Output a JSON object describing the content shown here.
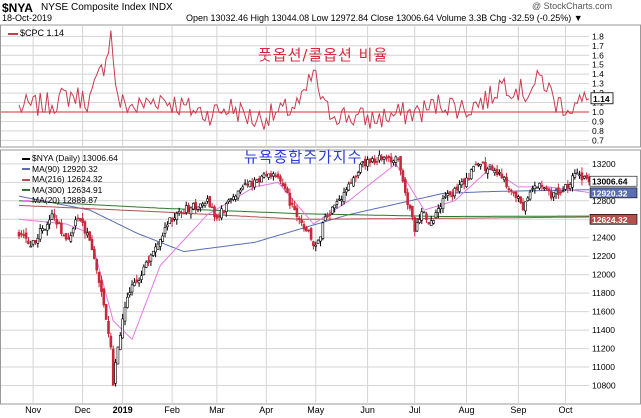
{
  "header": {
    "ticker": "$NYA",
    "name": "NYSE Composite Index INDX",
    "date": "18-Oct-2019",
    "quote_line": "Open 13032.46  High 13044.08  Low 12972.84  Close 13006.64  Volume 3.3B  Chg -32.59 (-0.25%) ▼",
    "watermark": "@ StockCharts.com"
  },
  "upper_panel": {
    "legend": "$CPC 1.14",
    "annotation": "풋옵션/콜옵션 비율",
    "last_value_label": "1.14"
  },
  "main_panel": {
    "legend": [
      {
        "label": "$NYA (Daily) 13006.64",
        "color": "#000000"
      },
      {
        "label": "MA(90) 12920.32",
        "color": "#5a6eb4"
      },
      {
        "label": "MA(216) 12624.32",
        "color": "#b4504b"
      },
      {
        "label": "MA(300) 12634.91",
        "color": "#2d782d"
      },
      {
        "label": "MA(20) 12889.87",
        "color": "#e678e6"
      }
    ],
    "annotation": "뉴욕종합주가지수",
    "price_tag": "13006.64",
    "ma90_tag": "12920.32",
    "ma216_tag": "12624.32"
  },
  "colors": {
    "up": "#000000",
    "down": "#c8283c",
    "cpc_line": "#c83c50",
    "ma90": "#5a6eb4",
    "ma216": "#b4504b",
    "ma300": "#2d782d",
    "ma20": "#e678e6",
    "ref_line": "#d23232",
    "grid": "#d4d4d4"
  },
  "chart_data": [
    {
      "type": "line",
      "name": "$CPC",
      "ylim": [
        0.63,
        1.92
      ],
      "yticks": [
        0.7,
        0.8,
        0.9,
        1.0,
        1.1,
        1.2,
        1.3,
        1.4,
        1.5,
        1.6,
        1.7,
        1.8
      ],
      "reference_line": 1.0,
      "x_range": [
        0,
        242
      ],
      "keypoints": [
        [
          0,
          1.05
        ],
        [
          12,
          1.08
        ],
        [
          22,
          1.18
        ],
        [
          30,
          1.12
        ],
        [
          36,
          1.5
        ],
        [
          39,
          1.82
        ],
        [
          42,
          1.1
        ],
        [
          50,
          1.05
        ],
        [
          60,
          1.15
        ],
        [
          70,
          1.05
        ],
        [
          80,
          0.98
        ],
        [
          90,
          1.05
        ],
        [
          100,
          0.92
        ],
        [
          110,
          0.98
        ],
        [
          120,
          1.1
        ],
        [
          125,
          1.42
        ],
        [
          130,
          1.02
        ],
        [
          140,
          0.95
        ],
        [
          150,
          0.92
        ],
        [
          160,
          0.97
        ],
        [
          170,
          1.0
        ],
        [
          180,
          1.1
        ],
        [
          190,
          1.03
        ],
        [
          195,
          1.1
        ],
        [
          200,
          1.15
        ],
        [
          205,
          1.32
        ],
        [
          215,
          1.2
        ],
        [
          222,
          1.36
        ],
        [
          228,
          1.1
        ],
        [
          235,
          1.05
        ],
        [
          242,
          1.14
        ]
      ],
      "last_value": 1.14,
      "grid": true
    },
    {
      "type": "candlestick",
      "name": "$NYA (Daily)",
      "ylim": [
        10600,
        13350
      ],
      "yticks": [
        10800,
        11000,
        11200,
        11400,
        11600,
        11800,
        12000,
        12200,
        12400,
        12600,
        12800,
        13000,
        13200
      ],
      "xticks": [
        {
          "label": "Nov",
          "day": 6
        },
        {
          "label": "Dec",
          "day": 27
        },
        {
          "label": "2019",
          "day": 44
        },
        {
          "label": "Feb",
          "day": 65
        },
        {
          "label": "Mar",
          "day": 84
        },
        {
          "label": "Apr",
          "day": 105
        },
        {
          "label": "May",
          "day": 126
        },
        {
          "label": "Jun",
          "day": 148
        },
        {
          "label": "Jul",
          "day": 168
        },
        {
          "label": "Aug",
          "day": 190
        },
        {
          "label": "Sep",
          "day": 212
        },
        {
          "label": "Oct",
          "day": 232
        }
      ],
      "x_range": [
        0,
        242
      ],
      "close_keypoints": [
        [
          0,
          12450
        ],
        [
          5,
          12300
        ],
        [
          10,
          12500
        ],
        [
          15,
          12650
        ],
        [
          20,
          12350
        ],
        [
          25,
          12600
        ],
        [
          30,
          12400
        ],
        [
          33,
          12050
        ],
        [
          36,
          11700
        ],
        [
          39,
          11200
        ],
        [
          40,
          10830
        ],
        [
          42,
          11250
        ],
        [
          46,
          11800
        ],
        [
          52,
          12000
        ],
        [
          58,
          12300
        ],
        [
          64,
          12600
        ],
        [
          70,
          12700
        ],
        [
          76,
          12750
        ],
        [
          80,
          12800
        ],
        [
          84,
          12600
        ],
        [
          88,
          12750
        ],
        [
          94,
          12950
        ],
        [
          100,
          13000
        ],
        [
          106,
          13100
        ],
        [
          110,
          13050
        ],
        [
          114,
          12850
        ],
        [
          118,
          12600
        ],
        [
          122,
          12500
        ],
        [
          126,
          12300
        ],
        [
          130,
          12600
        ],
        [
          136,
          12800
        ],
        [
          140,
          13000
        ],
        [
          146,
          13200
        ],
        [
          150,
          13250
        ],
        [
          156,
          13250
        ],
        [
          161,
          13230
        ],
        [
          165,
          12800
        ],
        [
          168,
          12500
        ],
        [
          171,
          12700
        ],
        [
          175,
          12550
        ],
        [
          180,
          12800
        ],
        [
          185,
          12900
        ],
        [
          190,
          13050
        ],
        [
          195,
          13200
        ],
        [
          200,
          13150
        ],
        [
          205,
          13050
        ],
        [
          210,
          12900
        ],
        [
          214,
          12700
        ],
        [
          218,
          12950
        ],
        [
          222,
          13000
        ],
        [
          226,
          12850
        ],
        [
          232,
          12950
        ],
        [
          237,
          13080
        ],
        [
          242,
          13006.64
        ]
      ],
      "last_close": 13006.64,
      "moving_averages": [
        {
          "name": "MA(90)",
          "last": 12920.32,
          "points": [
            [
              0,
              12850
            ],
            [
              30,
              12700
            ],
            [
              50,
              12450
            ],
            [
              70,
              12250
            ],
            [
              100,
              12350
            ],
            [
              140,
              12650
            ],
            [
              180,
              12880
            ],
            [
              200,
              12900
            ],
            [
              242,
              12920.32
            ]
          ]
        },
        {
          "name": "MA(216)",
          "last": 12624.32,
          "points": [
            [
              0,
              12750
            ],
            [
              60,
              12680
            ],
            [
              120,
              12600
            ],
            [
              180,
              12610
            ],
            [
              242,
              12624.32
            ]
          ]
        },
        {
          "name": "MA(300)",
          "last": 12634.91,
          "points": [
            [
              0,
              12800
            ],
            [
              60,
              12720
            ],
            [
              120,
              12660
            ],
            [
              180,
              12630
            ],
            [
              242,
              12634.91
            ]
          ]
        },
        {
          "name": "MA(20)",
          "last": 12889.87,
          "points": [
            [
              0,
              12600
            ],
            [
              20,
              12550
            ],
            [
              30,
              12450
            ],
            [
              40,
              11500
            ],
            [
              48,
              11300
            ],
            [
              60,
              12100
            ],
            [
              80,
              12650
            ],
            [
              100,
              12950
            ],
            [
              110,
              13000
            ],
            [
              125,
              12550
            ],
            [
              140,
              12800
            ],
            [
              160,
              13200
            ],
            [
              172,
              12700
            ],
            [
              185,
              12800
            ],
            [
              200,
              13150
            ],
            [
              212,
              12950
            ],
            [
              225,
              12950
            ],
            [
              242,
              12889.87
            ]
          ]
        }
      ],
      "grid": true
    }
  ]
}
